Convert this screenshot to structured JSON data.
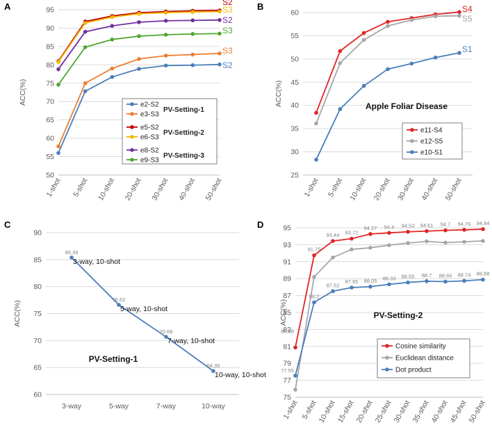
{
  "chart_data": [
    {
      "panel": "A",
      "type": "line",
      "ylabel": "ACC(%)",
      "ylim": [
        50,
        95
      ],
      "yticks": [
        "50",
        "55",
        "60",
        "65",
        "70",
        "75",
        "80",
        "85",
        "90",
        "95"
      ],
      "categories": [
        "1-shot",
        "5-shot",
        "10-shot",
        "20-shot",
        "30-shot",
        "40-shot",
        "50-shot"
      ],
      "series": [
        {
          "name": "e2-S2",
          "color": "#4a7ebb",
          "end_label": "S2",
          "values": [
            56.0,
            72.8,
            76.7,
            78.9,
            79.8,
            79.9,
            80.1
          ]
        },
        {
          "name": "e3-S3",
          "color": "#ed7d31",
          "end_label": "S3",
          "values": [
            57.8,
            75.0,
            79.0,
            81.6,
            82.5,
            82.8,
            83.1
          ]
        },
        {
          "name": "e5-S2",
          "color": "#c00000",
          "end_label": "S2",
          "values": [
            81.0,
            91.8,
            93.3,
            94.2,
            94.5,
            94.7,
            94.8
          ]
        },
        {
          "name": "e6-S3",
          "color": "#f2b800",
          "end_label": "S3",
          "values": [
            80.8,
            91.4,
            93.0,
            93.9,
            94.2,
            94.4,
            94.5
          ]
        },
        {
          "name": "e8-S2",
          "color": "#7030a0",
          "end_label": "S2",
          "values": [
            78.8,
            89.0,
            90.6,
            91.6,
            92.0,
            92.1,
            92.2
          ]
        },
        {
          "name": "e9-S3",
          "color": "#4ea72e",
          "end_label": "S3",
          "values": [
            74.6,
            84.8,
            86.9,
            87.8,
            88.2,
            88.4,
            88.5
          ]
        }
      ],
      "legend_groups": [
        "PV-Setting-1",
        "PV-Setting-2",
        "PV-Setting-3"
      ],
      "legend_position": "center-right"
    },
    {
      "panel": "B",
      "type": "line",
      "title": "Apple Foliar Disease",
      "ylabel": "ACC(%)",
      "ylim": [
        25,
        60
      ],
      "yticks": [
        "25",
        "30",
        "35",
        "40",
        "45",
        "50",
        "55",
        "60"
      ],
      "categories": [
        "1-shot",
        "5-shot",
        "10-shot",
        "20-shot",
        "30-shot",
        "40-shot",
        "50-shot"
      ],
      "series": [
        {
          "name": "e11-S4",
          "color": "#e02424",
          "end_label": "S4",
          "values": [
            38.4,
            51.7,
            55.6,
            58.0,
            58.8,
            59.6,
            60.1
          ]
        },
        {
          "name": "e12-S5",
          "color": "#a6a6a6",
          "end_label": "S5",
          "values": [
            36.1,
            49.1,
            54.1,
            57.1,
            58.4,
            59.2,
            59.3
          ]
        },
        {
          "name": "e10-S1",
          "color": "#4a7ebb",
          "end_label": "S1",
          "values": [
            28.3,
            39.2,
            44.2,
            47.8,
            49.0,
            50.3,
            51.3
          ]
        }
      ],
      "legend_position": "center-right"
    },
    {
      "panel": "C",
      "type": "line",
      "title": "PV-Setting-1",
      "ylabel": "ACC(%)",
      "ylim": [
        60,
        90
      ],
      "yticks": [
        "60",
        "65",
        "70",
        "75",
        "80",
        "85",
        "90"
      ],
      "categories": [
        "3-way",
        "5-way",
        "7-way",
        "10-way"
      ],
      "series": [
        {
          "name": "PV-Setting-1",
          "color": "#4a7ebb",
          "values": [
            85.39,
            76.62,
            70.68,
            64.35
          ],
          "value_labels": [
            "85.39",
            "76.62",
            "70.68",
            "64.35"
          ],
          "point_labels": [
            "3-way, 10-shot",
            "5-way, 10-shot",
            "7-way, 10-shot",
            "10-way, 10-shot"
          ]
        }
      ]
    },
    {
      "panel": "D",
      "type": "line",
      "title": "PV-Setting-2",
      "ylabel": "ACC(%)",
      "ylim": [
        75,
        95
      ],
      "yticks": [
        "75",
        "77",
        "79",
        "81",
        "83",
        "85",
        "87",
        "89",
        "91",
        "93",
        "95"
      ],
      "categories": [
        "1-shot",
        "5-shot",
        "10-shot",
        "15-shot",
        "20-shot",
        "25-shot",
        "30-shot",
        "35-shot",
        "40-shot",
        "45-shot",
        "50-shot"
      ],
      "series": [
        {
          "name": "Cosine similarity",
          "color": "#e02424",
          "values": [
            80.88,
            91.75,
            93.44,
            93.72,
            94.27,
            94.4,
            94.53,
            94.61,
            94.7,
            94.76,
            94.84
          ],
          "value_labels": [
            "80.88",
            "91.75",
            "93.44",
            "93.72",
            "94.27",
            "94.4",
            "94.53",
            "94.61",
            "94.7",
            "94.76",
            "94.84"
          ]
        },
        {
          "name": "Euclidean distance",
          "color": "#a6a6a6",
          "values": [
            75.9,
            89.2,
            91.5,
            92.45,
            92.65,
            92.95,
            93.2,
            93.4,
            93.25,
            93.35,
            93.45
          ]
        },
        {
          "name": "Dot product",
          "color": "#4a7ebb",
          "values": [
            77.55,
            86.2,
            87.52,
            87.95,
            88.05,
            88.33,
            88.55,
            88.7,
            88.65,
            88.74,
            88.88
          ],
          "value_labels": [
            "77.55",
            "86.2",
            "87.52",
            "87.95",
            "88.05",
            "88.33",
            "88.55",
            "88.7",
            "88.65",
            "88.74",
            "88.88"
          ]
        }
      ],
      "legend_position": "bottom-right"
    }
  ],
  "panel_letters": [
    "A",
    "B",
    "C",
    "D"
  ]
}
